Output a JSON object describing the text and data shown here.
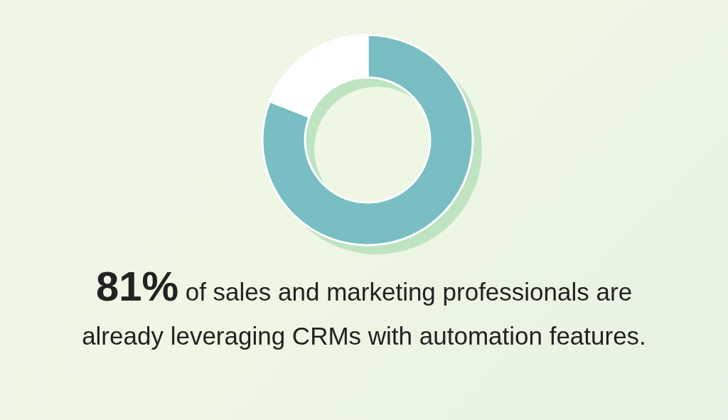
{
  "chart_data": {
    "type": "donut",
    "title": "81% of sales and marketing professionals are already leveraging CRMs with automation features.",
    "categories": [
      null,
      null
    ],
    "values": [
      81,
      19
    ],
    "colors": [
      "#78bec3",
      "#ffffff"
    ]
  }
}
